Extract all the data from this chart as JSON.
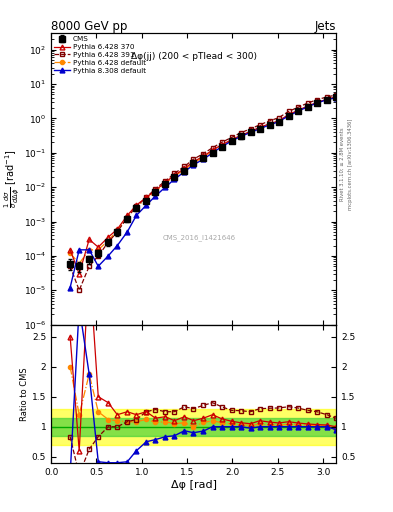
{
  "title": "8000 GeV pp",
  "title_right": "Jets",
  "annotation": "Δφ(jj) (200 < pTlead < 300)",
  "watermark": "CMS_2016_I1421646",
  "rivet_text": "Rivet 3.1.10; ≥ 2.8M events",
  "arxiv_text": "mcplots.cern.ch [arXiv:1306.3436]",
  "xlabel": "Δφ [rad]",
  "ylabel": "1/σ dσ/dΔφ  [rad⁻¹]",
  "ratio_ylabel": "Ratio to CMS",
  "xlim": [
    0,
    3.14159
  ],
  "ylim_log": [
    1e-06,
    300.0
  ],
  "ylim_ratio": [
    0.39,
    2.7
  ],
  "cms_x": [
    0.21,
    0.31,
    0.42,
    0.52,
    0.63,
    0.73,
    0.84,
    0.94,
    1.05,
    1.15,
    1.26,
    1.36,
    1.47,
    1.57,
    1.68,
    1.78,
    1.88,
    1.99,
    2.09,
    2.2,
    2.3,
    2.41,
    2.51,
    2.62,
    2.72,
    2.83,
    2.93,
    3.04,
    3.14
  ],
  "cms_y": [
    6e-05,
    5e-05,
    8e-05,
    0.00012,
    0.00025,
    0.0005,
    0.0012,
    0.0025,
    0.004,
    0.007,
    0.012,
    0.02,
    0.03,
    0.05,
    0.07,
    0.1,
    0.15,
    0.22,
    0.3,
    0.4,
    0.5,
    0.65,
    0.8,
    1.2,
    1.6,
    2.2,
    2.8,
    3.5,
    4.2
  ],
  "cms_yerr": [
    2e-05,
    1.5e-05,
    2e-05,
    3e-05,
    6e-05,
    0.00012,
    0.0002,
    0.0005,
    0.0006,
    0.001,
    0.002,
    0.003,
    0.005,
    0.007,
    0.01,
    0.015,
    0.02,
    0.03,
    0.04,
    0.05,
    0.06,
    0.08,
    0.1,
    0.15,
    0.2,
    0.25,
    0.3,
    0.4,
    0.5
  ],
  "p6_370_x": [
    0.21,
    0.31,
    0.42,
    0.52,
    0.63,
    0.73,
    0.84,
    0.94,
    1.05,
    1.15,
    1.26,
    1.36,
    1.47,
    1.57,
    1.68,
    1.78,
    1.88,
    1.99,
    2.09,
    2.2,
    2.3,
    2.41,
    2.51,
    2.62,
    2.72,
    2.83,
    2.93,
    3.04,
    3.14
  ],
  "p6_370_y": [
    0.00015,
    3e-05,
    0.0003,
    0.00018,
    0.00035,
    0.0006,
    0.0015,
    0.003,
    0.005,
    0.008,
    0.014,
    0.022,
    0.035,
    0.055,
    0.08,
    0.12,
    0.17,
    0.24,
    0.32,
    0.42,
    0.55,
    0.7,
    0.85,
    1.3,
    1.7,
    2.3,
    2.9,
    3.6,
    4.2
  ],
  "p6_391_x": [
    0.21,
    0.31,
    0.42,
    0.52,
    0.63,
    0.73,
    0.84,
    0.94,
    1.05,
    1.15,
    1.26,
    1.36,
    1.47,
    1.57,
    1.68,
    1.78,
    1.88,
    1.99,
    2.09,
    2.2,
    2.3,
    2.41,
    2.51,
    2.62,
    2.72,
    2.83,
    2.93,
    3.04,
    3.14
  ],
  "p6_391_y": [
    5e-05,
    1e-05,
    5e-05,
    0.0001,
    0.00025,
    0.0005,
    0.0013,
    0.0028,
    0.005,
    0.009,
    0.015,
    0.025,
    0.04,
    0.065,
    0.095,
    0.14,
    0.2,
    0.28,
    0.38,
    0.5,
    0.65,
    0.85,
    1.05,
    1.6,
    2.1,
    2.8,
    3.5,
    4.2,
    4.8
  ],
  "p6_def_x": [
    0.21,
    0.31,
    0.42,
    0.52,
    0.63,
    0.73,
    0.84,
    0.94,
    1.05,
    1.15,
    1.26,
    1.36,
    1.47,
    1.57,
    1.68,
    1.78,
    1.88,
    1.99,
    2.09,
    2.2,
    2.3,
    2.41,
    2.51,
    2.62,
    2.72,
    2.83,
    2.93,
    3.04,
    3.14
  ],
  "p6_def_y": [
    0.00012,
    6e-05,
    0.00015,
    0.00015,
    0.00028,
    0.00055,
    0.0013,
    0.0027,
    0.0045,
    0.0075,
    0.013,
    0.021,
    0.032,
    0.05,
    0.075,
    0.11,
    0.16,
    0.23,
    0.31,
    0.41,
    0.52,
    0.67,
    0.82,
    1.25,
    1.65,
    2.25,
    2.85,
    3.55,
    4.2
  ],
  "p8_def_x": [
    0.21,
    0.31,
    0.42,
    0.52,
    0.63,
    0.73,
    0.84,
    0.94,
    1.05,
    1.15,
    1.26,
    1.36,
    1.47,
    1.57,
    1.68,
    1.78,
    1.88,
    1.99,
    2.09,
    2.2,
    2.3,
    2.41,
    2.51,
    2.62,
    2.72,
    2.83,
    2.93,
    3.04,
    3.14
  ],
  "p8_def_y": [
    1.2e-05,
    0.00015,
    0.00015,
    5e-05,
    0.0001,
    0.0002,
    0.0005,
    0.0015,
    0.003,
    0.0055,
    0.01,
    0.017,
    0.028,
    0.045,
    0.065,
    0.1,
    0.15,
    0.22,
    0.3,
    0.39,
    0.5,
    0.65,
    0.8,
    1.2,
    1.6,
    2.2,
    2.8,
    3.5,
    4.0
  ],
  "color_cms": "#000000",
  "color_p6_370": "#cc0000",
  "color_p6_391": "#800000",
  "color_p6_def": "#ff8800",
  "color_p8_def": "#0000cc",
  "green_band_lo": 0.85,
  "green_band_hi": 1.15,
  "yellow_band_lo": 0.7,
  "yellow_band_hi": 1.3,
  "green_color": "#33cc33",
  "yellow_color": "#ffff00",
  "green_alpha": 0.6,
  "yellow_alpha": 0.6
}
